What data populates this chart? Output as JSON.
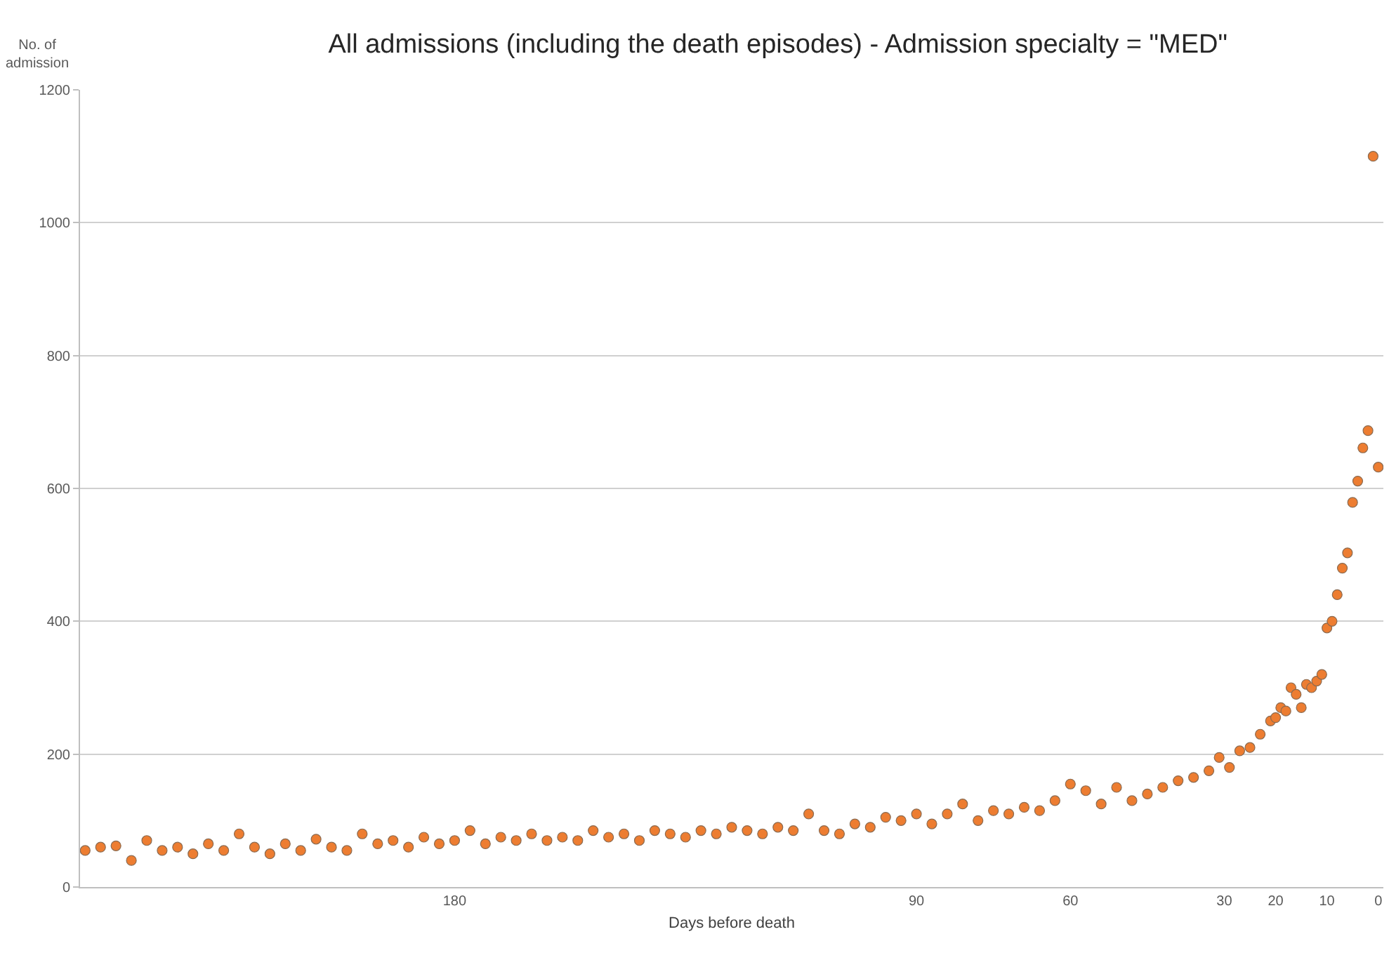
{
  "chart_data": {
    "type": "scatter",
    "title": "All admissions (including the death episodes) - Admission specialty = \"MED\"",
    "xlabel": "Days before death",
    "ylabel": "No. of admission",
    "x": [
      252,
      249,
      246,
      243,
      240,
      237,
      234,
      231,
      228,
      225,
      222,
      219,
      216,
      213,
      210,
      207,
      204,
      201,
      198,
      195,
      192,
      189,
      186,
      183,
      180,
      177,
      174,
      171,
      168,
      165,
      162,
      159,
      156,
      153,
      150,
      147,
      144,
      141,
      138,
      135,
      132,
      129,
      126,
      123,
      120,
      117,
      114,
      111,
      108,
      105,
      102,
      99,
      96,
      93,
      90,
      87,
      84,
      81,
      78,
      75,
      72,
      69,
      66,
      63,
      60,
      57,
      54,
      51,
      48,
      45,
      42,
      39,
      36,
      33,
      31,
      29,
      27,
      25,
      23,
      21,
      20,
      19,
      18,
      17,
      16,
      15,
      14,
      13,
      12,
      11,
      10,
      9,
      8,
      7,
      6,
      5,
      4,
      3,
      2,
      1,
      0
    ],
    "series": [
      {
        "color": "#ed7d31",
        "values": [
          55,
          60,
          62,
          40,
          70,
          55,
          60,
          50,
          65,
          55,
          80,
          60,
          50,
          65,
          55,
          72,
          60,
          55,
          80,
          65,
          70,
          60,
          75,
          65,
          70,
          85,
          65,
          75,
          70,
          80,
          70,
          75,
          70,
          85,
          75,
          80,
          70,
          85,
          80,
          75,
          85,
          80,
          90,
          85,
          80,
          90,
          85,
          110,
          85,
          80,
          95,
          90,
          105,
          100,
          110,
          95,
          110,
          125,
          100,
          115,
          110,
          120,
          115,
          130,
          155,
          145,
          125,
          150,
          130,
          140,
          150,
          160,
          165,
          175,
          195,
          180,
          205,
          210,
          230,
          250,
          255,
          270,
          265,
          300,
          290,
          270,
          305,
          300,
          310,
          320,
          390,
          400,
          440,
          480,
          503,
          579,
          611,
          661,
          687,
          1100,
          632
        ]
      }
    ],
    "xlim": [
      253,
      -1
    ],
    "xticks": [
      180,
      90,
      60,
      30,
      20,
      10,
      0
    ],
    "ylim": [
      0,
      1200
    ],
    "yticks": [
      0,
      200,
      400,
      600,
      800,
      1000,
      1200
    ],
    "grid": "y",
    "marker": "circle",
    "legend": false
  }
}
